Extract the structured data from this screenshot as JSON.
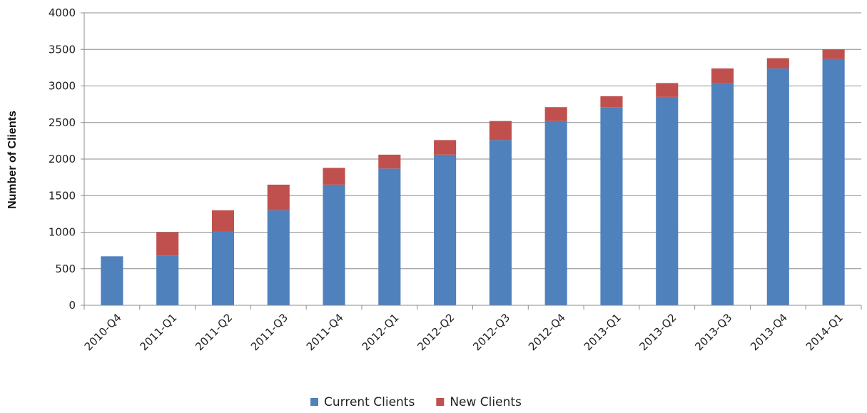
{
  "chart_data": {
    "type": "bar",
    "stacked": true,
    "title": "",
    "xlabel": "",
    "ylabel": "Number of Clients",
    "ylim": [
      0,
      4000
    ],
    "yticks": [
      0,
      500,
      1000,
      1500,
      2000,
      2500,
      3000,
      3500,
      4000
    ],
    "grid": true,
    "legend_position": "bottom",
    "categories": [
      "2010-Q4",
      "2011-Q1",
      "2011-Q2",
      "2011-Q3",
      "2011-Q4",
      "2012-Q1",
      "2012-Q2",
      "2012-Q3",
      "2012-Q4",
      "2013-Q1",
      "2013-Q2",
      "2013-Q3",
      "2013-Q4",
      "2014-Q1"
    ],
    "series": [
      {
        "name": "Current Clients",
        "color": "#4f81bd",
        "values": [
          670,
          680,
          1010,
          1300,
          1650,
          1870,
          2060,
          2260,
          2520,
          2710,
          2850,
          3040,
          3240,
          3370
        ]
      },
      {
        "name": "New Clients",
        "color": "#c0504d",
        "values": [
          0,
          320,
          290,
          350,
          230,
          190,
          200,
          260,
          190,
          150,
          190,
          200,
          140,
          130
        ]
      }
    ]
  }
}
